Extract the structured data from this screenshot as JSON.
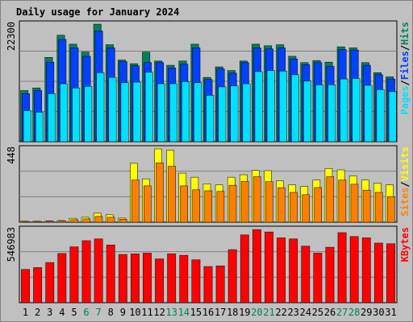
{
  "colors": {
    "background": "#c0c0c0",
    "title": "#0000cc",
    "hits": "#00805c",
    "files": "#0040ff",
    "pages": "#00e0ff",
    "visits": "#ffff00",
    "sites": "#ff8000",
    "kbytes": "#ff0000",
    "separator": "#000000",
    "weekend_label": "#00805c",
    "weekday_label": "#000000"
  },
  "chart_data": {
    "type": "bar",
    "title": "Daily usage for January 2024",
    "categories": [
      "1",
      "2",
      "3",
      "4",
      "5",
      "6",
      "7",
      "8",
      "9",
      "10",
      "11",
      "12",
      "13",
      "14",
      "15",
      "16",
      "17",
      "18",
      "19",
      "20",
      "21",
      "22",
      "23",
      "24",
      "25",
      "26",
      "27",
      "28",
      "29",
      "30",
      "31"
    ],
    "weekend_days": [
      "6",
      "7",
      "13",
      "14",
      "20",
      "21",
      "27",
      "28"
    ],
    "panels": [
      {
        "name": "hits-files-pages",
        "ylim": [
          0,
          22300
        ],
        "max_label": "22300",
        "legend": [
          "Pages",
          "/",
          "Files",
          "/",
          "Hits"
        ],
        "legend_colors": [
          "pages",
          "separator",
          "files",
          "separator",
          "hits"
        ],
        "series": [
          {
            "name": "Hits",
            "color_key": "hits",
            "values": [
              9700,
              10200,
              16000,
              20200,
              18500,
              17000,
              22300,
              18400,
              15500,
              14800,
              17000,
              15300,
              14500,
              15300,
              18500,
              12200,
              14200,
              13500,
              15300,
              18500,
              18200,
              18400,
              16200,
              15000,
              15400,
              15100,
              18000,
              17800,
              15000,
              13100,
              12300
            ]
          },
          {
            "name": "Files",
            "color_key": "files",
            "values": [
              9100,
              9700,
              15100,
              19400,
              17800,
              16200,
              21000,
              17800,
              15200,
              14400,
              15000,
              15000,
              14000,
              14700,
              17800,
              11800,
              13800,
              13000,
              15000,
              17800,
              17600,
              17800,
              15700,
              14600,
              15000,
              14300,
              17500,
              17400,
              14500,
              12700,
              11900
            ]
          },
          {
            "name": "Pages",
            "color_key": "pages",
            "values": [
              5900,
              5600,
              9100,
              11000,
              10200,
              10500,
              13100,
              12200,
              11200,
              11300,
              13200,
              11000,
              11000,
              11400,
              11200,
              8800,
              10400,
              10600,
              11000,
              13300,
              13500,
              13400,
              12700,
              11500,
              10800,
              10800,
              11900,
              12000,
              10700,
              9900,
              9500
            ]
          }
        ]
      },
      {
        "name": "visits-sites",
        "ylim": [
          0,
          448
        ],
        "max_label": "448",
        "legend": [
          "Sites",
          "/",
          "Visits"
        ],
        "legend_colors": [
          "sites",
          "separator",
          "visits"
        ],
        "series": [
          {
            "name": "Visits",
            "color_key": "visits",
            "values": [
              6,
              6,
              8,
              10,
              24,
              30,
              55,
              45,
              25,
              360,
              265,
              448,
              440,
              300,
              275,
              235,
              228,
              275,
              290,
              317,
              315,
              253,
              228,
              218,
              258,
              328,
              320,
              283,
              258,
              238,
              228
            ]
          },
          {
            "name": "Sites",
            "color_key": "sites",
            "values": [
              4,
              4,
              6,
              8,
              15,
              20,
              35,
              30,
              18,
              258,
              222,
              363,
              342,
              222,
              198,
              192,
              188,
              226,
              250,
              278,
              248,
              211,
              182,
              168,
              212,
              278,
              258,
              232,
              196,
              182,
              156
            ]
          }
        ]
      },
      {
        "name": "kbytes",
        "ylim": [
          0,
          546983
        ],
        "max_label": "546983",
        "legend": [
          "KBytes"
        ],
        "legend_colors": [
          "kbytes"
        ],
        "series": [
          {
            "name": "KBytes",
            "color_key": "kbytes",
            "values": [
              248000,
              262000,
              300000,
              367000,
              417000,
              463000,
              476000,
              431000,
              360000,
              364000,
              370000,
              327000,
              365000,
              354000,
              320000,
              270000,
              275000,
              396000,
              506000,
              546000,
              528000,
              484000,
              476000,
              422000,
              370000,
              414000,
              523000,
              494000,
              484000,
              445000,
              440000
            ]
          }
        ]
      }
    ]
  }
}
